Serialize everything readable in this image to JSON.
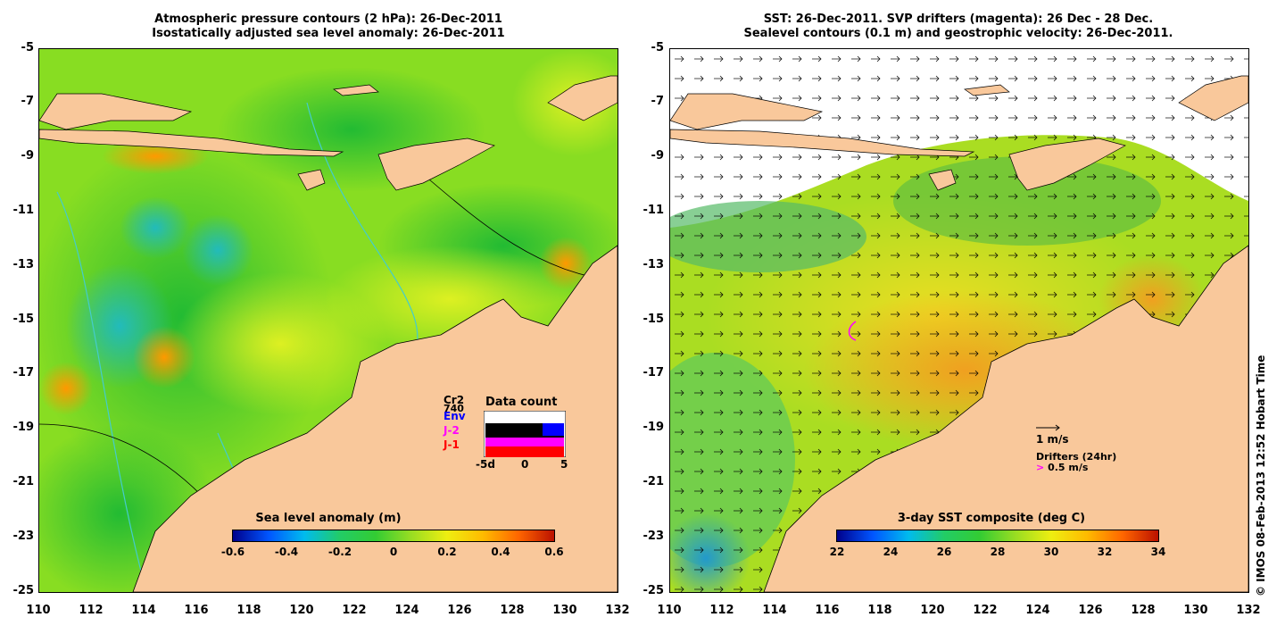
{
  "left_panel": {
    "title_line1": "Atmospheric pressure contours (2 hPa): 26-Dec-2011",
    "title_line2": "Isostatically adjusted sea level anomaly: 26-Dec-2011",
    "colorbar": {
      "title": "Sea level anomaly (m)",
      "ticks": [
        "-0.6",
        "-0.4",
        "-0.2",
        "0",
        "0.2",
        "0.4",
        "0.6"
      ]
    },
    "inset": {
      "title": "Data count",
      "missions": [
        "Cr2",
        "Env",
        "J-2",
        "J-1"
      ],
      "mission_colors": [
        "#000000",
        "#0000ff",
        "#ff00ff",
        "#ff0000"
      ],
      "extra_label": "740",
      "xticks": [
        "-5d",
        "0",
        "5"
      ]
    }
  },
  "right_panel": {
    "title_line1": "SST: 26-Dec-2011. SVP drifters (magenta): 26 Dec - 28 Dec.",
    "title_line2": "Sealevel contours (0.1 m) and geostrophic velocity: 26-Dec-2011.",
    "colorbar": {
      "title": "3-day SST composite (deg C)",
      "ticks": [
        "22",
        "24",
        "26",
        "28",
        "30",
        "32",
        "34"
      ]
    },
    "velocity_legend": "1 m/s",
    "drifter_legend_title": "Drifters (24hr)",
    "drifter_legend_value": "0.5 m/s"
  },
  "axes": {
    "lat_ticks": [
      "-5",
      "-7",
      "-9",
      "-11",
      "-13",
      "-15",
      "-17",
      "-19",
      "-21",
      "-23",
      "-25"
    ],
    "lon_ticks": [
      "110",
      "112",
      "114",
      "116",
      "118",
      "120",
      "122",
      "124",
      "126",
      "128",
      "130",
      "132"
    ]
  },
  "credit": "© IMOS 08-Feb-2013 12:52 Hobart Time",
  "colors": {
    "land": "#f9c89b",
    "sea_green": "#33cc33",
    "sea_yellow": "#ccee22",
    "sea_cyan": "#22bbbb",
    "sea_orange": "#ff9900"
  }
}
